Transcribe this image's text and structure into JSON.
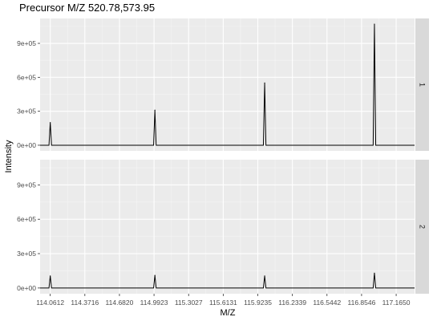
{
  "chart_data": {
    "type": "line",
    "title": "Precursor M/Z 520.78,573.95",
    "xlabel": "M/Z",
    "ylabel": "Intensity",
    "xlim": [
      113.97,
      117.33
    ],
    "ylim": [
      -50000,
      1120000
    ],
    "x_ticks": [
      114.0612,
      114.3716,
      114.682,
      114.9923,
      115.3027,
      115.6131,
      115.9235,
      116.2339,
      116.5442,
      116.8546,
      117.165
    ],
    "x_tick_labels": [
      "114.0612",
      "114.3716",
      "114.6820",
      "114.9923",
      "115.3027",
      "115.6131",
      "115.9235",
      "116.2339",
      "116.5442",
      "116.8546",
      "117.1650"
    ],
    "y_ticks": [
      0,
      300000,
      600000,
      900000
    ],
    "y_tick_labels": [
      "0e+00",
      "3e+05",
      "6e+05",
      "9e+05"
    ],
    "grid": true,
    "facet_layout": "vertical, strip labels on right",
    "facets": [
      {
        "label": "1",
        "peaks": [
          {
            "mz": 114.0612,
            "intensity": 200000
          },
          {
            "mz": 115.0,
            "intensity": 310000
          },
          {
            "mz": 115.985,
            "intensity": 550000
          },
          {
            "mz": 116.97,
            "intensity": 1070000
          }
        ]
      },
      {
        "label": "2",
        "peaks": [
          {
            "mz": 114.0612,
            "intensity": 105000
          },
          {
            "mz": 115.0,
            "intensity": 110000
          },
          {
            "mz": 115.985,
            "intensity": 105000
          },
          {
            "mz": 116.97,
            "intensity": 130000
          }
        ]
      }
    ]
  }
}
